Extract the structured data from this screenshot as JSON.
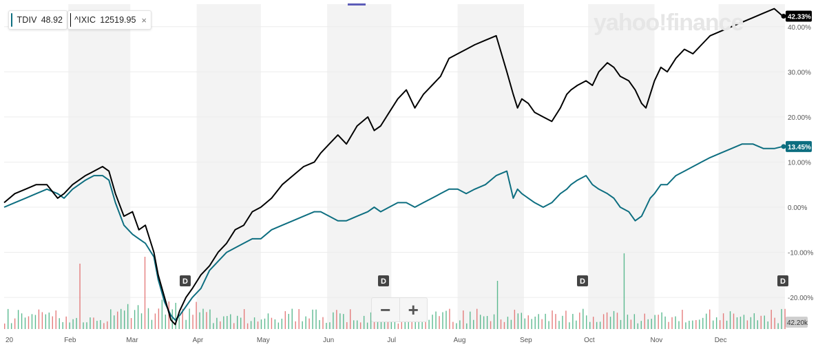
{
  "brand": "yahoo!finance",
  "legend": [
    {
      "symbol": "TDIV",
      "value": "48.92",
      "color": "#0d6e80"
    },
    {
      "symbol": "^IXIC",
      "value": "12519.95",
      "color": "#000000",
      "close": "×"
    }
  ],
  "zoom": {
    "minus": "−",
    "plus": "+"
  },
  "chart_data": {
    "type": "line",
    "ylim": [
      -27,
      45
    ],
    "y_ticks": [
      -20,
      -10,
      0,
      10,
      20,
      30,
      40
    ],
    "y_tick_labels": [
      "-20.00%",
      "-10.00%",
      "0.00%",
      "10.00%",
      "20.00%",
      "30.00%",
      "40.00%"
    ],
    "x_labels": [
      "20",
      "Feb",
      "Mar",
      "Apr",
      "May",
      "Jun",
      "Jul",
      "Aug",
      "Sep",
      "Oct",
      "Nov",
      "Dec"
    ],
    "x_label_days": [
      0,
      30,
      59,
      90,
      120,
      151,
      181,
      212,
      243,
      273,
      304,
      334
    ],
    "days_total": 365,
    "series": [
      {
        "name": "^IXIC",
        "color": "#000000",
        "last_label": "42.33%",
        "x": [
          0,
          5,
          10,
          15,
          20,
          25,
          28,
          32,
          38,
          42,
          46,
          49,
          52,
          56,
          60,
          63,
          66,
          70,
          72,
          75,
          78,
          80,
          82,
          85,
          88,
          92,
          96,
          100,
          104,
          108,
          112,
          116,
          120,
          125,
          130,
          135,
          140,
          145,
          148,
          152,
          156,
          160,
          165,
          170,
          173,
          176,
          180,
          184,
          188,
          192,
          196,
          200,
          204,
          208,
          212,
          216,
          220,
          225,
          230,
          235,
          238,
          240,
          242,
          245,
          248,
          252,
          256,
          260,
          263,
          265,
          268,
          272,
          275,
          278,
          282,
          285,
          288,
          292,
          295,
          298,
          300,
          302,
          304,
          307,
          310,
          314,
          318,
          322,
          326,
          330,
          335,
          340,
          345,
          350,
          355,
          360,
          364
        ],
        "y": [
          1,
          3,
          4,
          5,
          5,
          2,
          3,
          5,
          7,
          8,
          9,
          8,
          3,
          -2,
          -1,
          -5,
          -4,
          -10,
          -15,
          -20,
          -25,
          -26,
          -23,
          -20,
          -18,
          -15,
          -13,
          -10,
          -8,
          -5,
          -4,
          -1,
          0,
          2,
          5,
          7,
          9,
          10,
          12,
          14,
          16,
          14,
          18,
          20,
          17,
          18,
          21,
          24,
          26,
          22,
          25,
          27,
          29,
          33,
          34,
          35,
          36,
          37,
          38,
          30,
          25,
          22,
          24,
          23,
          21,
          20,
          19,
          22,
          25,
          26,
          27,
          28,
          27,
          30,
          32,
          31,
          29,
          28,
          26,
          23,
          22,
          25,
          28,
          31,
          30,
          33,
          35,
          34,
          36,
          38,
          39,
          40,
          41,
          42,
          43,
          44,
          42.33
        ]
      },
      {
        "name": "TDIV",
        "color": "#0d6e80",
        "last_label": "13.45%",
        "x": [
          0,
          5,
          10,
          15,
          20,
          25,
          28,
          32,
          38,
          42,
          46,
          49,
          52,
          56,
          60,
          63,
          66,
          70,
          72,
          75,
          78,
          80,
          82,
          85,
          88,
          92,
          96,
          100,
          104,
          108,
          112,
          116,
          120,
          125,
          130,
          135,
          140,
          145,
          148,
          152,
          156,
          160,
          165,
          170,
          173,
          176,
          180,
          184,
          188,
          192,
          196,
          200,
          204,
          208,
          212,
          216,
          220,
          225,
          230,
          235,
          238,
          240,
          242,
          245,
          248,
          252,
          256,
          260,
          263,
          265,
          268,
          272,
          275,
          278,
          282,
          285,
          288,
          292,
          295,
          298,
          300,
          302,
          304,
          307,
          310,
          314,
          318,
          322,
          326,
          330,
          335,
          340,
          345,
          350,
          355,
          360,
          364
        ],
        "y": [
          0,
          1,
          2,
          3,
          4,
          3,
          2,
          4,
          6,
          7,
          7,
          6,
          1,
          -4,
          -6,
          -7,
          -8,
          -11,
          -16,
          -21,
          -24,
          -25,
          -24,
          -22,
          -20,
          -18,
          -14,
          -12,
          -10,
          -9,
          -8,
          -7,
          -7,
          -5,
          -4,
          -3,
          -2,
          -1,
          -1,
          -2,
          -3,
          -3,
          -2,
          -1,
          0,
          -1,
          0,
          1,
          1,
          0,
          1,
          2,
          3,
          4,
          4,
          3,
          4,
          5,
          7,
          8,
          2,
          4,
          3,
          2,
          1,
          0,
          1,
          3,
          4,
          5,
          6,
          7,
          5,
          4,
          3,
          2,
          0,
          -1,
          -3,
          -2,
          0,
          2,
          3,
          5,
          5,
          7,
          8,
          9,
          10,
          11,
          12,
          13,
          14,
          14,
          13,
          13,
          13.45
        ]
      }
    ],
    "last_axis_label": "42.20k"
  }
}
